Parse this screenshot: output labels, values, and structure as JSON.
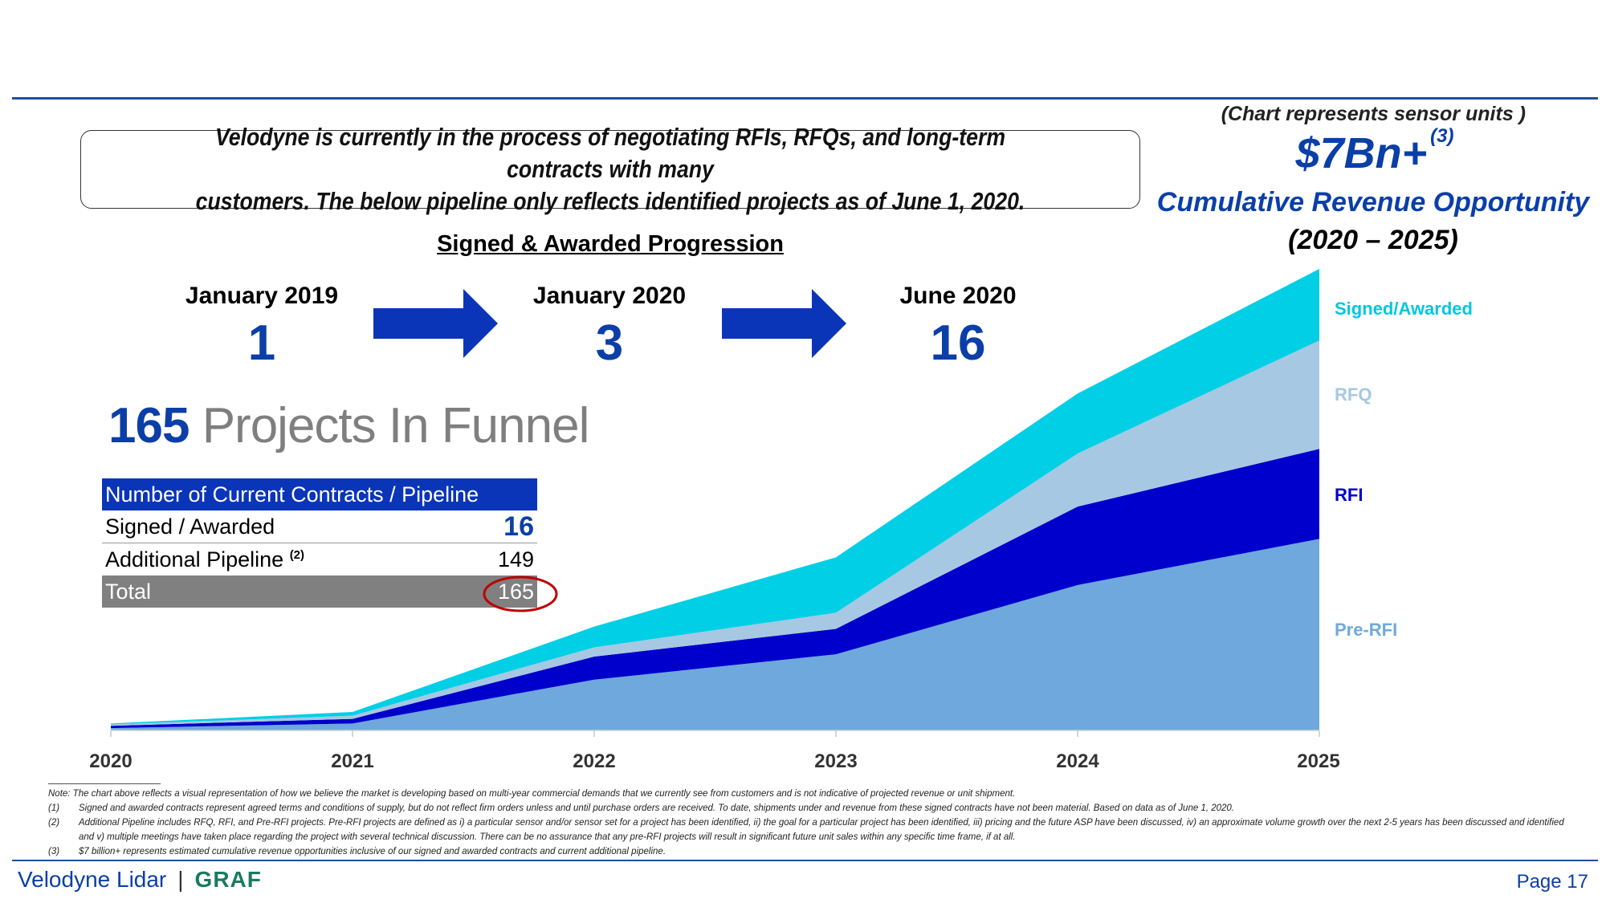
{
  "callout": {
    "line1": "Velodyne is currently in the process of negotiating RFIs, RFQs, and long-term contracts with many",
    "line2": "customers. The below pipeline only reflects identified projects as of June 1, 2020."
  },
  "opportunity": {
    "note": "(Chart represents sensor units )",
    "amount": "$7Bn+",
    "amount_ref": "(3)",
    "label": "Cumulative Revenue Opportunity",
    "period": "(2020 – 2025)"
  },
  "progression": {
    "title": "Signed & Awarded Progression",
    "steps": [
      {
        "date": "January 2019",
        "count": "1"
      },
      {
        "date": "January 2020",
        "count": "3"
      },
      {
        "date": "June 2020",
        "count": "16"
      }
    ]
  },
  "funnel": {
    "number": "165",
    "text": "Projects In Funnel"
  },
  "contracts_table": {
    "header": "Number of Current Contracts / Pipeline",
    "rows": [
      {
        "label": "Signed / Awarded",
        "ref": "",
        "value": "16"
      },
      {
        "label": "Additional Pipeline",
        "ref": "(2)",
        "value": "149"
      },
      {
        "label": "Total",
        "ref": "",
        "value": "165"
      }
    ]
  },
  "chart_data": {
    "type": "area",
    "stacked": true,
    "x": [
      "2020",
      "2021",
      "2022",
      "2023",
      "2024",
      "2025"
    ],
    "ylim": [
      0,
      100
    ],
    "series": [
      {
        "name": "Pre-RFI",
        "color": "#6fa8dc",
        "values": [
          0.5,
          1.5,
          11,
          16.5,
          31.5,
          41.5
        ]
      },
      {
        "name": "RFI",
        "color": "#0000cc",
        "values": [
          0.5,
          1,
          5,
          5.5,
          17,
          19.5
        ]
      },
      {
        "name": "RFQ",
        "color": "#a6c8e2",
        "values": [
          0.3,
          0.7,
          2,
          3.5,
          11.5,
          23.5
        ]
      },
      {
        "name": "Signed/Awarded",
        "color": "#00cfe6",
        "values": [
          0.2,
          0.8,
          4.5,
          12,
          13,
          15.5
        ]
      }
    ],
    "legend_placement": "right",
    "legend_labels": [
      "Signed/Awarded",
      "RFQ",
      "RFI",
      "Pre-RFI"
    ]
  },
  "notes": [
    {
      "key": "",
      "text": "Note: The chart above reflects a visual representation of how we believe the market is developing based on multi-year commercial demands that we currently see from customers and is not indicative of projected revenue or unit shipment."
    },
    {
      "key": "(1)",
      "text": "Signed and awarded contracts represent agreed terms and conditions of supply, but do not reflect firm orders unless and until purchase orders are received. To date, shipments under and revenue from these signed contracts have not been material. Based on data as of June 1, 2020."
    },
    {
      "key": "(2)",
      "text": "Additional Pipeline includes RFQ, RFI, and Pre-RFI projects. Pre-RFI projects are defined as i) a particular sensor and/or sensor set for a project has been identified, ii) the goal for a particular project has been identified, iii) pricing and the future ASP have been discussed, iv) an approximate volume growth over the next 2-5 years has been discussed and identified and v) multiple meetings have taken place regarding the project with several technical discussion. There can be no assurance that any pre-RFI projects will result in significant future unit sales within any specific time frame, if at all."
    },
    {
      "key": "(3)",
      "text": "$7 billion+ represents estimated cumulative revenue opportunities inclusive of our signed and awarded contracts and current additional pipeline."
    }
  ],
  "footer": {
    "brand": "Velodyne Lidar",
    "partner": "GRAF",
    "page": "Page 17"
  }
}
